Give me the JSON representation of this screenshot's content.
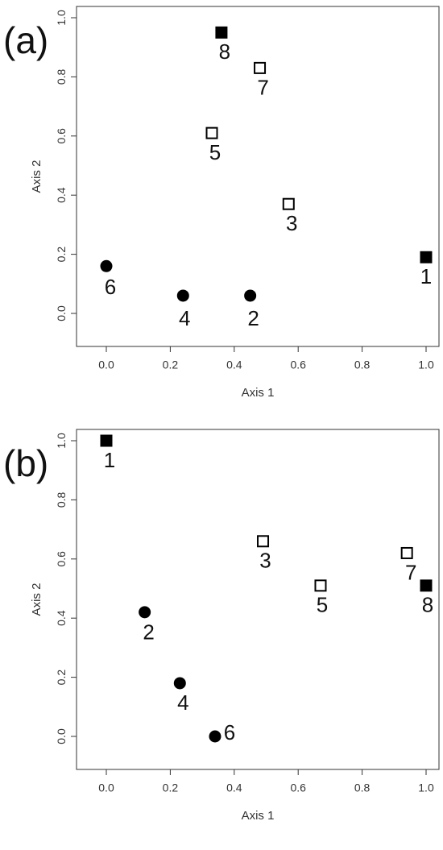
{
  "chart_data": [
    {
      "panel": "(a)",
      "type": "scatter",
      "xlabel": "Axis 1",
      "ylabel": "Axis 2",
      "xlim": [
        0,
        1
      ],
      "ylim": [
        0,
        1
      ],
      "xticks": [
        "0.0",
        "0.2",
        "0.4",
        "0.6",
        "0.8",
        "1.0"
      ],
      "yticks": [
        "0.0",
        "0.2",
        "0.4",
        "0.6",
        "0.8",
        "1.0"
      ],
      "grid": false,
      "points": [
        {
          "label": "1",
          "x": 1.0,
          "y": 0.19,
          "marker": "filled-square"
        },
        {
          "label": "2",
          "x": 0.45,
          "y": 0.06,
          "marker": "filled-circle"
        },
        {
          "label": "3",
          "x": 0.57,
          "y": 0.37,
          "marker": "open-square"
        },
        {
          "label": "4",
          "x": 0.24,
          "y": 0.06,
          "marker": "filled-circle"
        },
        {
          "label": "5",
          "x": 0.33,
          "y": 0.61,
          "marker": "open-square"
        },
        {
          "label": "6",
          "x": 0.0,
          "y": 0.16,
          "marker": "filled-circle"
        },
        {
          "label": "7",
          "x": 0.48,
          "y": 0.83,
          "marker": "open-square"
        },
        {
          "label": "8",
          "x": 0.36,
          "y": 0.95,
          "marker": "filled-square"
        }
      ]
    },
    {
      "panel": "(b)",
      "type": "scatter",
      "xlabel": "Axis 1",
      "ylabel": "Axis 2",
      "xlim": [
        0,
        1
      ],
      "ylim": [
        0,
        1
      ],
      "xticks": [
        "0.0",
        "0.2",
        "0.4",
        "0.6",
        "0.8",
        "1.0"
      ],
      "yticks": [
        "0.0",
        "0.2",
        "0.4",
        "0.6",
        "0.8",
        "1.0"
      ],
      "grid": false,
      "points": [
        {
          "label": "1",
          "x": 0.0,
          "y": 1.0,
          "marker": "filled-square"
        },
        {
          "label": "2",
          "x": 0.12,
          "y": 0.42,
          "marker": "filled-circle"
        },
        {
          "label": "3",
          "x": 0.49,
          "y": 0.66,
          "marker": "open-square"
        },
        {
          "label": "4",
          "x": 0.23,
          "y": 0.18,
          "marker": "filled-circle"
        },
        {
          "label": "5",
          "x": 0.67,
          "y": 0.51,
          "marker": "open-square"
        },
        {
          "label": "6",
          "x": 0.34,
          "y": 0.0,
          "marker": "filled-circle"
        },
        {
          "label": "7",
          "x": 0.94,
          "y": 0.62,
          "marker": "open-square"
        },
        {
          "label": "8",
          "x": 1.0,
          "y": 0.51,
          "marker": "filled-square"
        }
      ]
    }
  ]
}
